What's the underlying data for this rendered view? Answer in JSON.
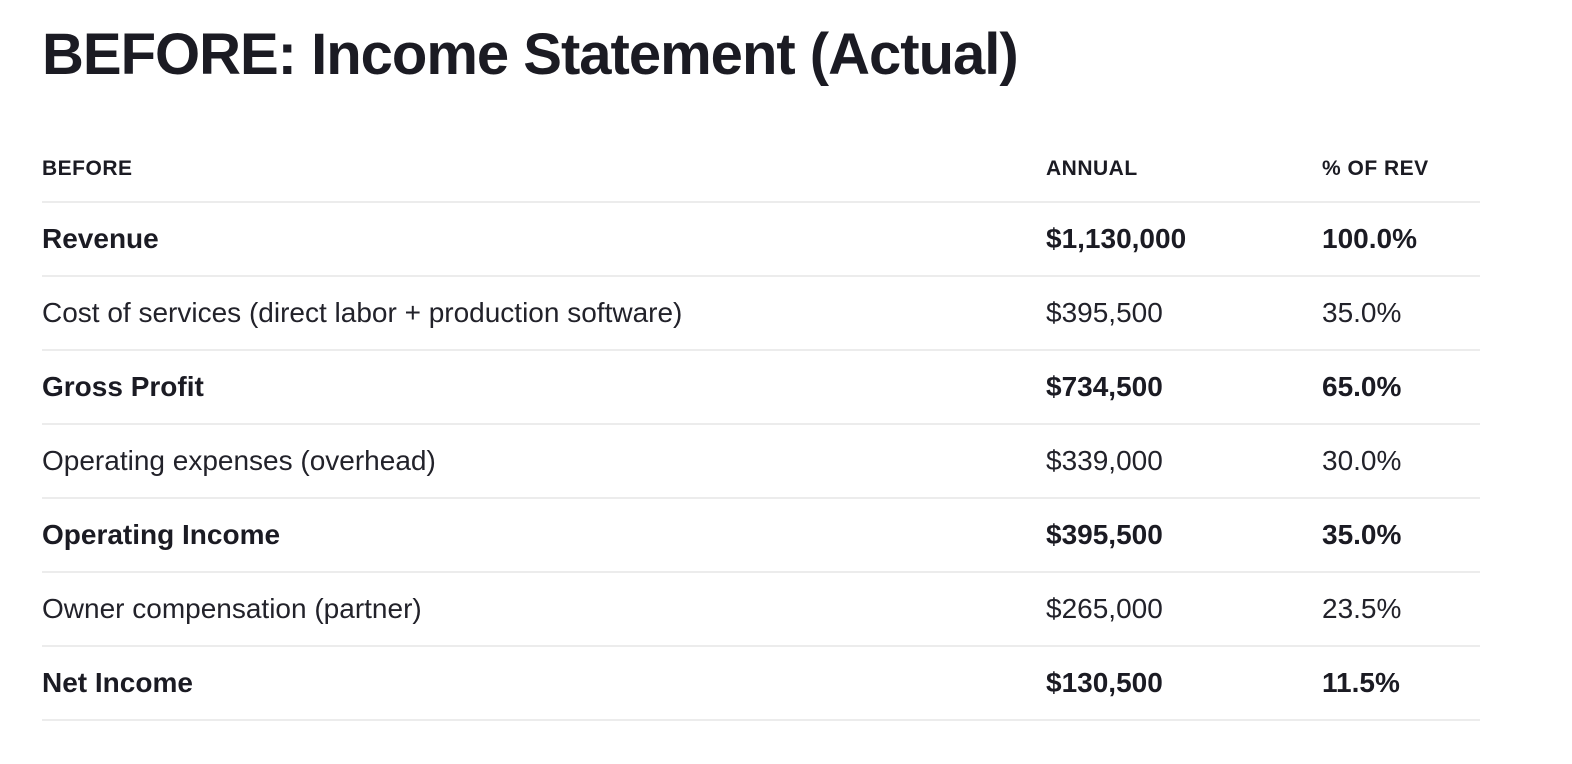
{
  "page": {
    "title": "BEFORE: Income Statement (Actual)"
  },
  "table": {
    "columns": [
      "BEFORE",
      "ANNUAL",
      "% OF REV"
    ],
    "rows": [
      {
        "label": "Revenue",
        "annual": "$1,130,000",
        "pct": "100.0%",
        "bold": true
      },
      {
        "label": "Cost of services (direct labor + production software)",
        "annual": "$395,500",
        "pct": "35.0%",
        "bold": false
      },
      {
        "label": "Gross Profit",
        "annual": "$734,500",
        "pct": "65.0%",
        "bold": true
      },
      {
        "label": "Operating expenses (overhead)",
        "annual": "$339,000",
        "pct": "30.0%",
        "bold": false
      },
      {
        "label": "Operating Income",
        "annual": "$395,500",
        "pct": "35.0%",
        "bold": true
      },
      {
        "label": "Owner compensation (partner)",
        "annual": "$265,000",
        "pct": "23.5%",
        "bold": false
      },
      {
        "label": "Net Income",
        "annual": "$130,500",
        "pct": "11.5%",
        "bold": true
      }
    ]
  },
  "colors": {
    "text": "#1b1b23",
    "divider": "#ececec",
    "background": "#ffffff"
  }
}
